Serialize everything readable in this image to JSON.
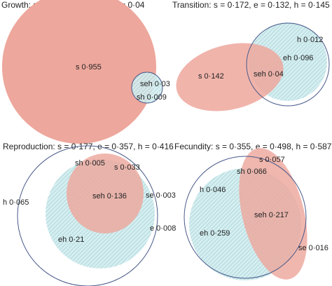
{
  "panels": [
    {
      "title": "Growth: s = 0·992, e = 0·029, h = 0·04",
      "labels": {
        "s": "s 0·955",
        "seh": "seh 0·03",
        "sh": "sh 0·009"
      }
    },
    {
      "title": "Transition: s = 0·172, e = 0·132, h = 0·145",
      "labels": {
        "h": "h 0·012",
        "eh": "eh 0·096",
        "s": "s 0·142",
        "seh": "seh 0·04"
      }
    },
    {
      "title": "Reproduction: s = 0·177, e = 0·357, h = 0·416",
      "labels": {
        "sh": "sh 0·005",
        "s": "s 0·033",
        "seh": "seh 0·136",
        "se": "se 0·003",
        "h": "h 0·065",
        "e": "e 0·008",
        "eh": "eh 0·21"
      }
    },
    {
      "title": "Fecundity: s = 0·355, e = 0·498, h = 0·587",
      "labels": {
        "s": "s 0·057",
        "sh": "sh 0·066",
        "h": "h 0·046",
        "seh": "seh 0·217",
        "eh": "eh 0·259",
        "se": "se 0·016"
      }
    }
  ],
  "colors": {
    "s_fill": "#eda79c",
    "e_fill": "#bfe3e6",
    "e_hatch": "#8fc9cf",
    "h_stroke": "#4a5a8a"
  }
}
